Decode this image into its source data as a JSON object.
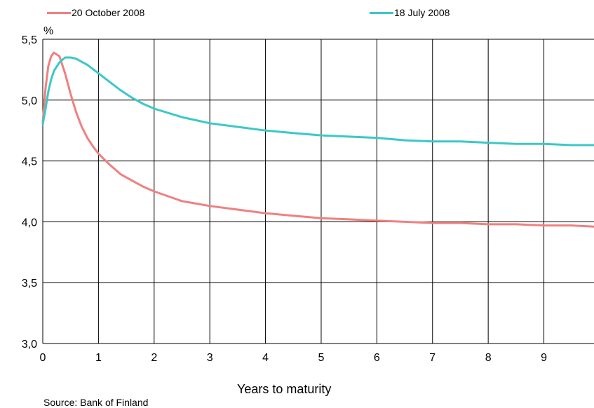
{
  "chart_data": {
    "type": "line",
    "title": "",
    "ylabel": "%",
    "xlabel": "Years to maturity",
    "source": "Source: Bank of Finland",
    "xlim": [
      0,
      9.9
    ],
    "ylim": [
      3.0,
      5.5
    ],
    "x_ticks": [
      "0",
      "1",
      "2",
      "3",
      "4",
      "5",
      "6",
      "7",
      "8",
      "9"
    ],
    "y_ticks": [
      "3,0",
      "3,5",
      "4,0",
      "4,5",
      "5,0",
      "5,5"
    ],
    "grid": true,
    "legend_position": "top",
    "series": [
      {
        "name": "20 October 2008",
        "color": "#f08080",
        "x": [
          0,
          0.05,
          0.1,
          0.15,
          0.2,
          0.3,
          0.4,
          0.5,
          0.6,
          0.7,
          0.8,
          0.9,
          1.0,
          1.2,
          1.4,
          1.6,
          1.8,
          2.0,
          2.5,
          3.0,
          3.5,
          4.0,
          4.5,
          5.0,
          5.5,
          6.0,
          6.5,
          7.0,
          7.5,
          8.0,
          8.5,
          9.0,
          9.5,
          9.9
        ],
        "values": [
          4.82,
          5.1,
          5.28,
          5.36,
          5.39,
          5.36,
          5.22,
          5.05,
          4.9,
          4.78,
          4.69,
          4.62,
          4.56,
          4.47,
          4.39,
          4.34,
          4.29,
          4.25,
          4.17,
          4.13,
          4.1,
          4.07,
          4.05,
          4.03,
          4.02,
          4.01,
          4.0,
          3.99,
          3.99,
          3.98,
          3.98,
          3.97,
          3.97,
          3.96
        ]
      },
      {
        "name": "18 July 2008",
        "color": "#3cc8c8",
        "x": [
          0,
          0.05,
          0.1,
          0.15,
          0.2,
          0.3,
          0.4,
          0.5,
          0.6,
          0.8,
          1.0,
          1.2,
          1.4,
          1.6,
          1.8,
          2.0,
          2.5,
          3.0,
          3.5,
          4.0,
          4.5,
          5.0,
          5.5,
          6.0,
          6.5,
          7.0,
          7.5,
          8.0,
          8.5,
          9.0,
          9.5,
          9.9
        ],
        "values": [
          4.8,
          4.93,
          5.07,
          5.17,
          5.24,
          5.31,
          5.35,
          5.35,
          5.34,
          5.29,
          5.22,
          5.15,
          5.08,
          5.02,
          4.97,
          4.93,
          4.86,
          4.81,
          4.78,
          4.75,
          4.73,
          4.71,
          4.7,
          4.69,
          4.67,
          4.66,
          4.66,
          4.65,
          4.64,
          4.64,
          4.63,
          4.63
        ]
      }
    ]
  }
}
